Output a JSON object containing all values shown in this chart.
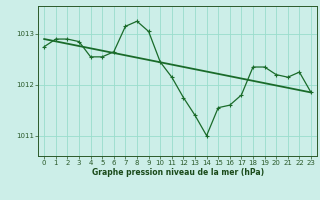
{
  "background_color": "#cceee8",
  "grid_color": "#99ddcc",
  "line_color": "#1a6b2a",
  "xlabel": "Graphe pression niveau de la mer (hPa)",
  "xlim": [
    -0.5,
    23.5
  ],
  "ylim": [
    1010.6,
    1013.55
  ],
  "yticks": [
    1011,
    1012,
    1013
  ],
  "xticks": [
    0,
    1,
    2,
    3,
    4,
    5,
    6,
    7,
    8,
    9,
    10,
    11,
    12,
    13,
    14,
    15,
    16,
    17,
    18,
    19,
    20,
    21,
    22,
    23
  ],
  "series1_x": [
    0,
    1,
    2,
    3,
    4,
    5,
    6,
    7,
    8,
    9,
    10,
    11,
    12,
    13,
    14,
    15,
    16,
    17,
    18,
    19,
    20,
    21,
    22,
    23
  ],
  "series1_y": [
    1012.75,
    1012.9,
    1012.9,
    1012.85,
    1012.55,
    1012.55,
    1012.65,
    1013.15,
    1013.25,
    1013.05,
    1012.45,
    1012.15,
    1011.75,
    1011.4,
    1011.0,
    1011.55,
    1011.6,
    1011.8,
    1012.35,
    1012.35,
    1012.2,
    1012.15,
    1012.25,
    1011.85
  ],
  "series2_x": [
    0,
    23
  ],
  "series2_y": [
    1012.9,
    1011.85
  ],
  "figsize": [
    3.2,
    2.0
  ],
  "dpi": 100
}
